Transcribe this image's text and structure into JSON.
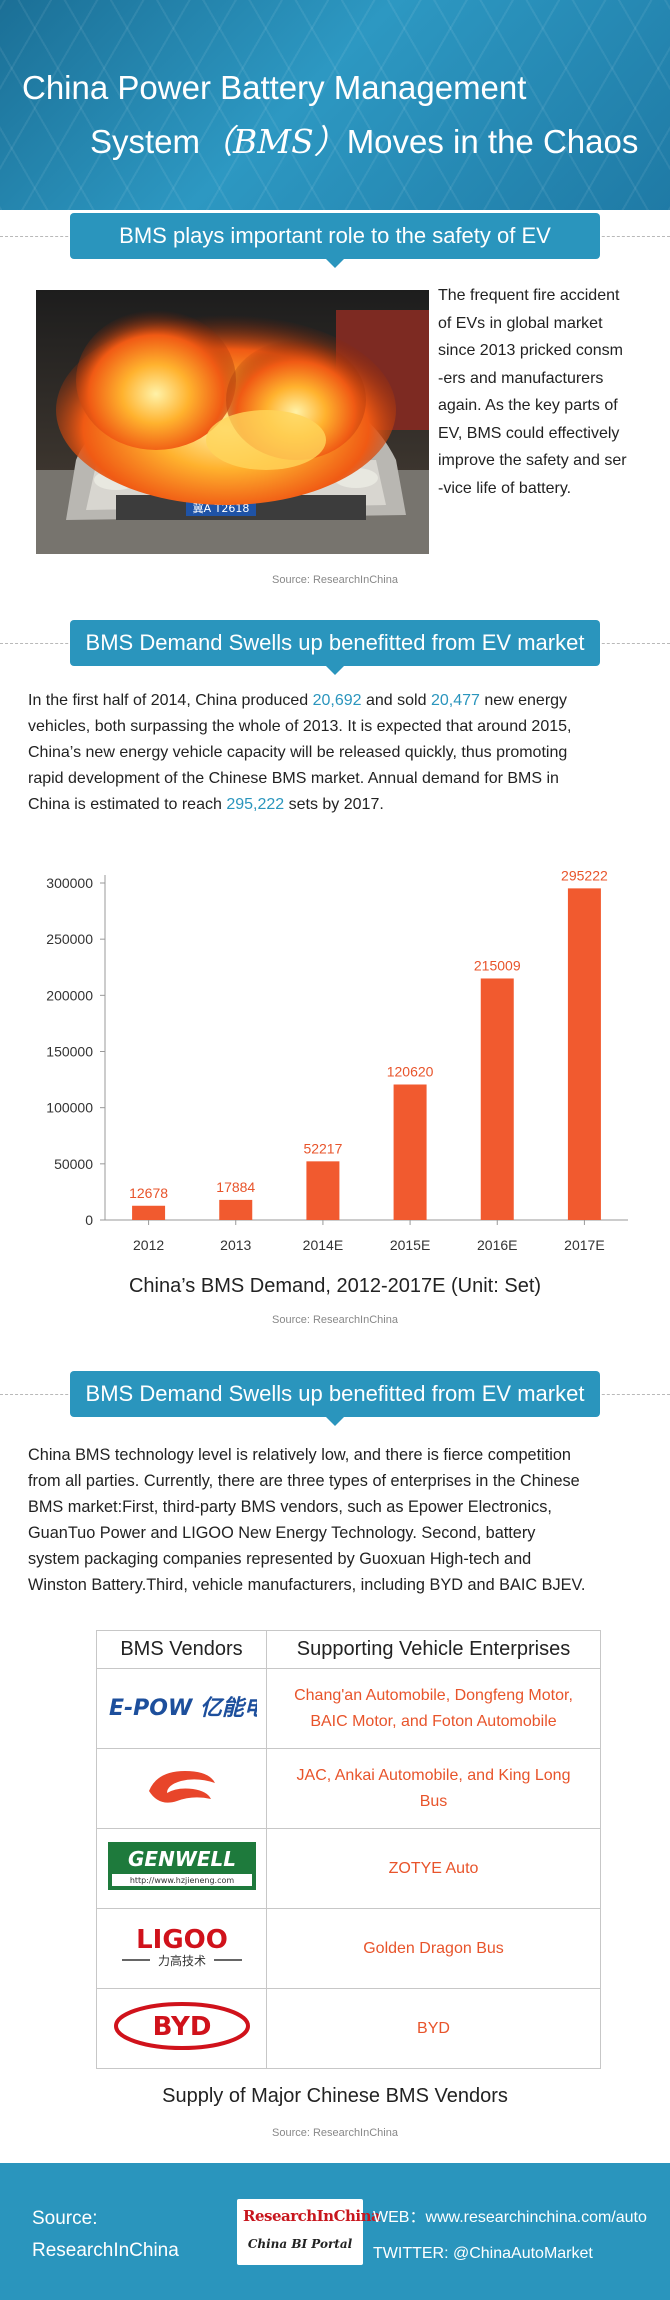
{
  "header": {
    "title_line1": "China Power Battery Management",
    "title_line2_pre": "System",
    "title_line2_bms": "（BMS）",
    "title_line2_post": "Moves in the Chaos"
  },
  "section1": {
    "banner": "BMS plays important role to the safety of EV",
    "plate_text": "冀A T2618",
    "text_lines": [
      "The frequent fire accident",
      "of EVs in global market",
      "since 2013 pricked consm",
      "-ers and manufacturers",
      "again. As the key parts of",
      "EV, BMS could effectively",
      " improve the safety and ser",
      "-vice life of battery."
    ],
    "source": "Source: ResearchInChina"
  },
  "section2": {
    "banner": "BMS Demand Swells up benefitted from EV market",
    "para": {
      "l1_a": "In the first half of 2014, China produced ",
      "l1_h1": "20,692",
      "l1_b": " and sold ",
      "l1_h2": "20,477",
      "l1_c": " new energy",
      "l2": "vehicles, both surpassing the whole of 2013. It is expected that around 2015,",
      "l3": "China’s new energy vehicle capacity will be released quickly, thus promoting",
      "l4": "rapid development of the Chinese BMS market. Annual demand for BMS in",
      "l5_a": "China is estimated to reach ",
      "l5_h": "295,222",
      "l5_b": " sets by 2017."
    },
    "chart_title": "China’s BMS Demand, 2012-2017E (Unit: Set)",
    "source": "Source: ResearchInChina"
  },
  "chart_data": {
    "type": "bar",
    "categories": [
      "2012",
      "2013",
      "2014E",
      "2015E",
      "2016E",
      "2017E"
    ],
    "values": [
      12678,
      17884,
      52217,
      120620,
      215009,
      295222
    ],
    "title": "China’s BMS Demand, 2012-2017E (Unit: Set)",
    "xlabel": "",
    "ylabel": "",
    "ylim": [
      0,
      300000
    ],
    "yticks": [
      "0",
      "50000",
      "100000",
      "150000",
      "200000",
      "250000",
      "300000"
    ],
    "grid": false,
    "legend": "none",
    "bar_color": "#f15a2f",
    "label_color": "#e8542b"
  },
  "section3": {
    "banner": "BMS Demand Swells up benefitted from EV market",
    "para_lines": [
      "China BMS technology level is relatively low, and there is fierce competition",
      "from all parties. Currently,  there are three types of enterprises in the Chinese",
      "BMS market:First, third-party BMS vendors, such as Epower Electronics,",
      "GuanTuo Power and LIGOO New Energy Technology. Second, battery",
      "system packaging companies represented by Guoxuan High-tech and",
      "Winston Battery.Third, vehicle manufacturers, including BYD and BAIC BJEV."
    ],
    "table": {
      "col1": "BMS Vendors",
      "col2": "Supporting Vehicle Enterprises",
      "rows": [
        {
          "logo": "E-POW 亿能电子",
          "enterprises": "Chang'an Automobile, Dongfeng Motor, BAIC Motor, and Foton Automobile"
        },
        {
          "logo": "",
          "enterprises": "JAC, Ankai Automobile, and King Long Bus"
        },
        {
          "logo": "GENWELL",
          "logo_sub": "http://www.hzjieneng.com",
          "enterprises": "ZOTYE Auto"
        },
        {
          "logo": "LIGOO",
          "logo_sub": "力高技术",
          "enterprises": "Golden Dragon Bus"
        },
        {
          "logo": "BYD",
          "enterprises": "BYD"
        }
      ]
    },
    "caption": "Supply of Major Chinese BMS Vendors",
    "source": "Source: ResearchInChina"
  },
  "footer": {
    "source_label": "Source:",
    "source_name": "ResearchInChina",
    "logo_main": "ResearchInChina",
    "logo_sub": "China BI Portal",
    "web": "WEB：www.researchinchina.com/auto",
    "twitter": "TWITTER:  @ChinaAutoMarket"
  },
  "colors": {
    "accent": "#2a95bd",
    "bar": "#f15a2f",
    "highlight_text": "#e8542b"
  }
}
